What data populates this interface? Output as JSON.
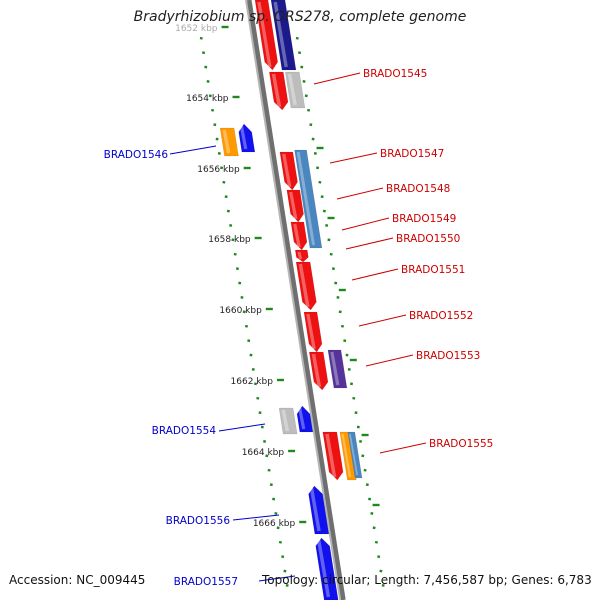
{
  "title": "Bradyrhizobium sp. ORS278, complete genome",
  "footer": {
    "accession_label": "Accession:",
    "accession": "NC_009445",
    "topology_label": "Topology:",
    "topology": "circular;",
    "length_label": "Length:",
    "length": "7,456,587 bp;",
    "genes_label": "Genes:",
    "genes": "6,783"
  },
  "colors": {
    "backbone": "#8c8c8c",
    "ticks": "#1e8a1e",
    "forward_label": "#cc0000",
    "reverse_label": "#0000cc",
    "red": "#ee1111",
    "navy": "#1a1a8c",
    "grey": "#bdbdbd",
    "blue": "#1111ee",
    "orange": "#ff9900",
    "steelblue": "#4a86c0",
    "purple": "#553399"
  },
  "scale": {
    "tick_labels": [
      "1652 kbp",
      "1654 kbp",
      "1656 kbp",
      "1658 kbp",
      "1660 kbp",
      "1662 kbp",
      "1664 kbp",
      "1666 kbp"
    ]
  },
  "genes": [
    {
      "id": "BRADO1545",
      "strand": "forward",
      "label": "BRADO1545"
    },
    {
      "id": "BRADO1546",
      "strand": "reverse",
      "label": "BRADO1546"
    },
    {
      "id": "BRADO1547",
      "strand": "forward",
      "label": "BRADO1547"
    },
    {
      "id": "BRADO1548",
      "strand": "forward",
      "label": "BRADO1548"
    },
    {
      "id": "BRADO1549",
      "strand": "forward",
      "label": "BRADO1549"
    },
    {
      "id": "BRADO1550",
      "strand": "forward",
      "label": "BRADO1550"
    },
    {
      "id": "BRADO1551",
      "strand": "forward",
      "label": "BRADO1551"
    },
    {
      "id": "BRADO1552",
      "strand": "forward",
      "label": "BRADO1552"
    },
    {
      "id": "BRADO1553",
      "strand": "forward",
      "label": "BRADO1553"
    },
    {
      "id": "BRADO1554",
      "strand": "reverse",
      "label": "BRADO1554"
    },
    {
      "id": "BRADO1555",
      "strand": "forward",
      "label": "BRADO1555"
    },
    {
      "id": "BRADO1556",
      "strand": "reverse",
      "label": "BRADO1556"
    },
    {
      "id": "BRADO1557",
      "strand": "reverse",
      "label": "BRADO1557"
    }
  ]
}
